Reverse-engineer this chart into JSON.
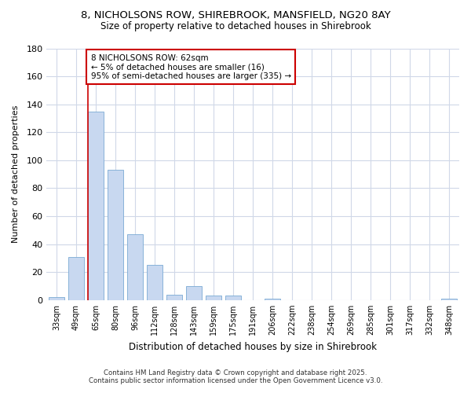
{
  "title_line1": "8, NICHOLSONS ROW, SHIREBROOK, MANSFIELD, NG20 8AY",
  "title_line2": "Size of property relative to detached houses in Shirebrook",
  "xlabel": "Distribution of detached houses by size in Shirebrook",
  "ylabel": "Number of detached properties",
  "categories": [
    "33sqm",
    "49sqm",
    "65sqm",
    "80sqm",
    "96sqm",
    "112sqm",
    "128sqm",
    "143sqm",
    "159sqm",
    "175sqm",
    "191sqm",
    "206sqm",
    "222sqm",
    "238sqm",
    "254sqm",
    "269sqm",
    "285sqm",
    "301sqm",
    "317sqm",
    "332sqm",
    "348sqm"
  ],
  "values": [
    2,
    31,
    135,
    93,
    47,
    25,
    4,
    10,
    3,
    3,
    0,
    1,
    0,
    0,
    0,
    0,
    0,
    0,
    0,
    0,
    1
  ],
  "bar_color": "#c8d8f0",
  "bar_edge_color": "#7aaad4",
  "vline_x_idx": 2,
  "vline_color": "#cc0000",
  "annotation_title": "8 NICHOLSONS ROW: 62sqm",
  "annotation_line2": "← 5% of detached houses are smaller (16)",
  "annotation_line3": "95% of semi-detached houses are larger (335) →",
  "annotation_box_color": "#cc0000",
  "ylim": [
    0,
    180
  ],
  "yticks": [
    0,
    20,
    40,
    60,
    80,
    100,
    120,
    140,
    160,
    180
  ],
  "plot_bg_color": "#ffffff",
  "fig_bg_color": "#ffffff",
  "grid_color": "#d0d8e8",
  "footer_line1": "Contains HM Land Registry data © Crown copyright and database right 2025.",
  "footer_line2": "Contains public sector information licensed under the Open Government Licence v3.0."
}
